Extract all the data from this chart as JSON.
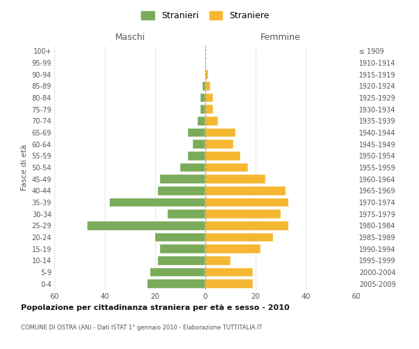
{
  "age_groups": [
    "0-4",
    "5-9",
    "10-14",
    "15-19",
    "20-24",
    "25-29",
    "30-34",
    "35-39",
    "40-44",
    "45-49",
    "50-54",
    "55-59",
    "60-64",
    "65-69",
    "70-74",
    "75-79",
    "80-84",
    "85-89",
    "90-94",
    "95-99",
    "100+"
  ],
  "birth_years": [
    "2005-2009",
    "2000-2004",
    "1995-1999",
    "1990-1994",
    "1985-1989",
    "1980-1984",
    "1975-1979",
    "1970-1974",
    "1965-1969",
    "1960-1964",
    "1955-1959",
    "1950-1954",
    "1945-1949",
    "1940-1944",
    "1935-1939",
    "1930-1934",
    "1925-1929",
    "1920-1924",
    "1915-1919",
    "1910-1914",
    "≤ 1909"
  ],
  "maschi": [
    23,
    22,
    19,
    18,
    20,
    47,
    15,
    38,
    19,
    18,
    10,
    7,
    5,
    7,
    3,
    2,
    2,
    1,
    0,
    0,
    0
  ],
  "femmine": [
    19,
    19,
    10,
    22,
    27,
    33,
    30,
    33,
    32,
    24,
    17,
    14,
    11,
    12,
    5,
    3,
    3,
    2,
    1,
    0,
    0
  ],
  "color_maschi": "#7aab5b",
  "color_femmine": "#f5b731",
  "title": "Popolazione per cittadinanza straniera per età e sesso - 2010",
  "subtitle": "COMUNE DI OSTRA (AN) - Dati ISTAT 1° gennaio 2010 - Elaborazione TUTTITALIA.IT",
  "xlabel_left": "Maschi",
  "xlabel_right": "Femmine",
  "ylabel_left": "Fasce di età",
  "legend_maschi": "Stranieri",
  "legend_femmine": "Straniere",
  "xlim": 60,
  "background_color": "#ffffff",
  "grid_color": "#cccccc"
}
